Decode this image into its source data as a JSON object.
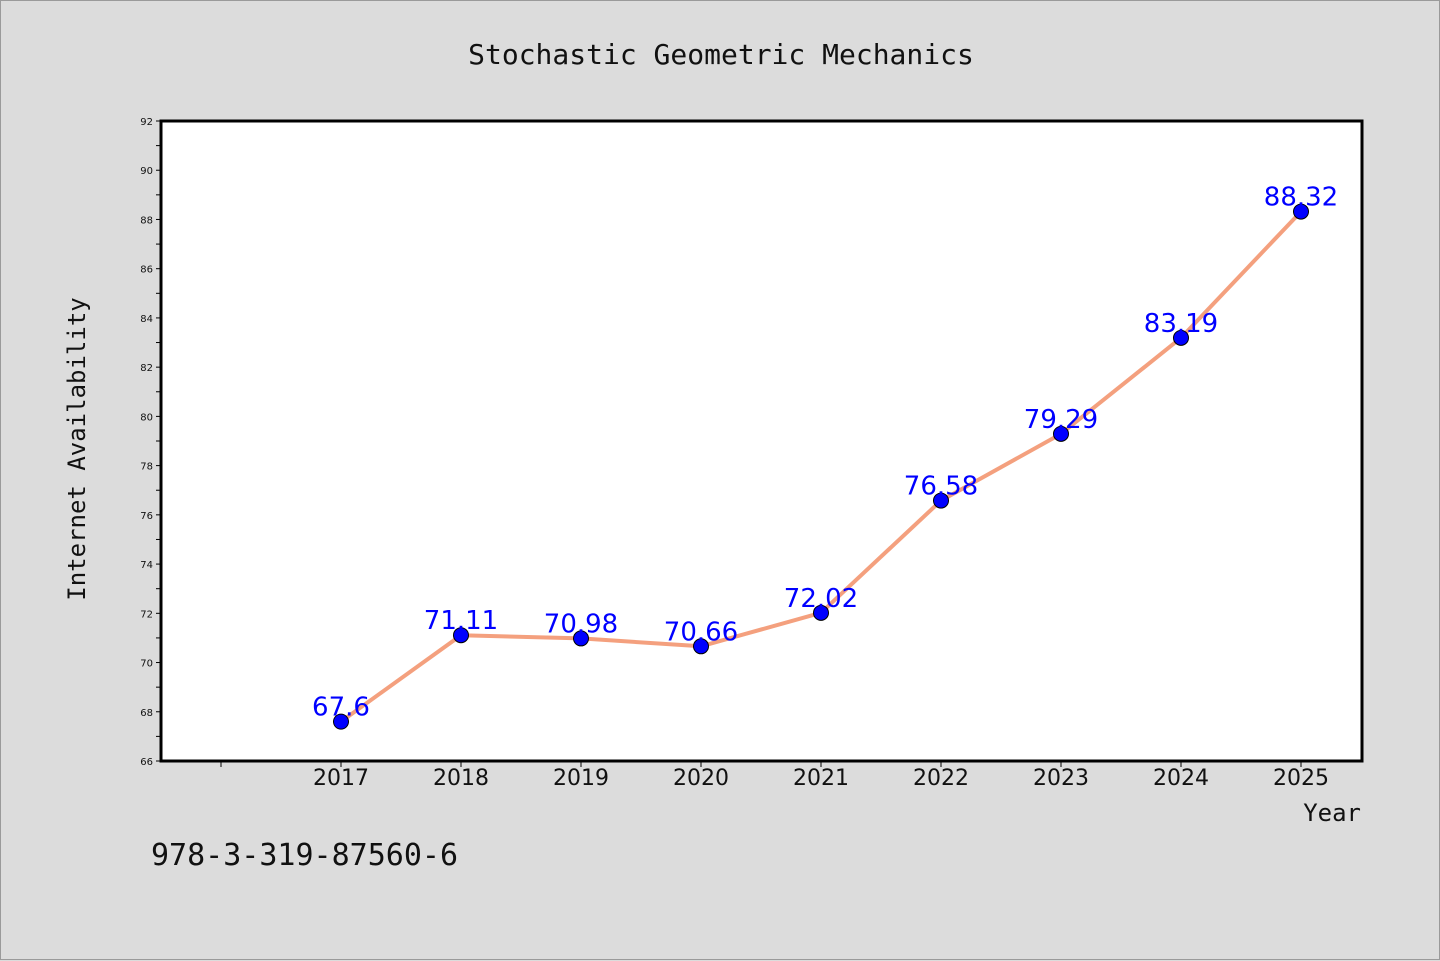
{
  "chart_data": {
    "type": "line",
    "title": "Stochastic Geometric Mechanics",
    "xlabel": "Year",
    "ylabel": "Internet Availability",
    "categories": [
      "2017",
      "2018",
      "2019",
      "2020",
      "2021",
      "2022",
      "2023",
      "2024",
      "2025"
    ],
    "series": [
      {
        "values": [
          67.6,
          71.11,
          70.98,
          70.66,
          72.02,
          76.58,
          79.29,
          83.19,
          88.32
        ],
        "labels": [
          "67.6",
          "71.11",
          "70.98",
          "70.66",
          "72.02",
          "76.58",
          "79.29",
          "83.19",
          "88.32"
        ],
        "line_color": "#f4a07e",
        "marker_color": "#0000ff",
        "label_color": "#0000ff"
      }
    ],
    "ylim": [
      66,
      92
    ],
    "yticks": [
      "66",
      "68",
      "70",
      "72",
      "74",
      "76",
      "78",
      "80",
      "82",
      "84",
      "86",
      "88",
      "90",
      "92"
    ],
    "grid": false,
    "annotation": "978-3-319-87560-6"
  }
}
